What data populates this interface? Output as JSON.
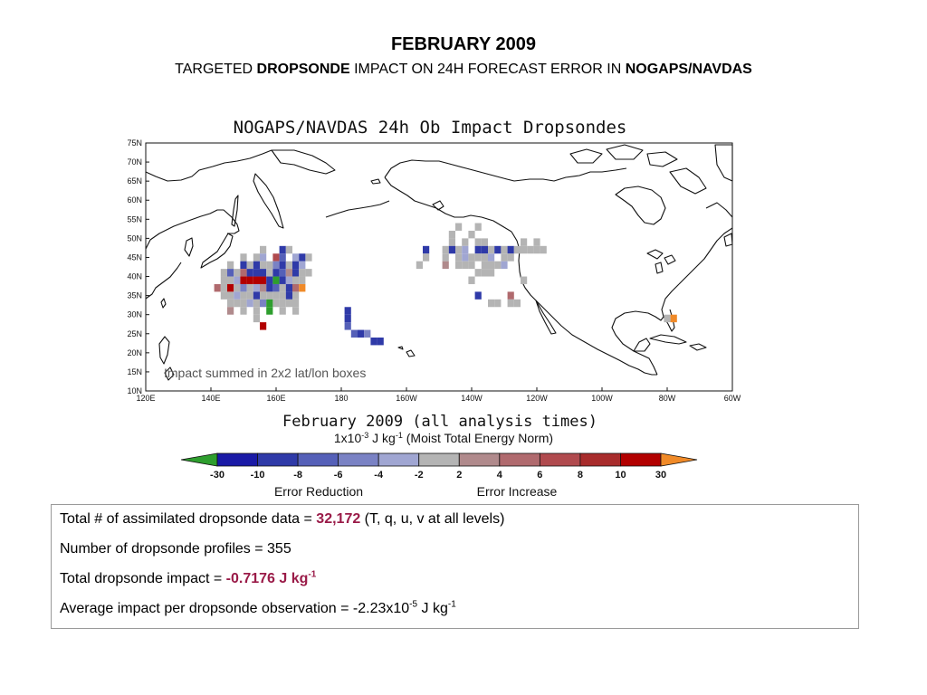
{
  "header": {
    "title": "FEBRUARY 2009",
    "subtitle_parts": [
      "TARGETED ",
      "DROPSONDE",
      " IMPACT ON 24H FORECAST ERROR IN ",
      "NOGAPS/NAVDAS"
    ]
  },
  "chart_data": {
    "type": "heatmap",
    "title": "NOGAPS/NAVDAS 24h Ob Impact Dropsondes",
    "subtitle": "February 2009 (all analysis times)",
    "annotation": "Impact summed in 2x2 lat/lon boxes",
    "units_parts": [
      "1x10",
      "-3",
      " J kg",
      "-1",
      "  (Moist Total Energy Norm)"
    ],
    "xlim": [
      120,
      300
    ],
    "ylim": [
      10,
      75
    ],
    "x_ticks": [
      120,
      140,
      160,
      180,
      200,
      220,
      240,
      260,
      280,
      300
    ],
    "x_tick_labels": [
      "120E",
      "140E",
      "160E",
      "180",
      "160W",
      "140W",
      "120W",
      "100W",
      "80W",
      "60W"
    ],
    "y_ticks": [
      10,
      15,
      20,
      25,
      30,
      35,
      40,
      45,
      50,
      55,
      60,
      65,
      70,
      75
    ],
    "y_tick_labels": [
      "10N",
      "15N",
      "20N",
      "25N",
      "30N",
      "35N",
      "40N",
      "45N",
      "50N",
      "55N",
      "60N",
      "65N",
      "70N",
      "75N"
    ],
    "colorbar": {
      "bounds": [
        "-30",
        "-10",
        "-8",
        "-6",
        "-4",
        "-2",
        "2",
        "4",
        "6",
        "8",
        "10",
        "30"
      ],
      "colors": [
        "#2e9e2e",
        "#1a1aa6",
        "#2f3aa8",
        "#5560b8",
        "#7a82c4",
        "#a0a6d2",
        "#b4b4b4",
        "#b08a8c",
        "#b06a6e",
        "#b04a4e",
        "#a82c2c",
        "#b20000",
        "#f08a28"
      ],
      "left_label": "Error Reduction",
      "right_label": "Error Increase"
    },
    "cells": [
      {
        "lon": 182,
        "lat": 31,
        "v": -10
      },
      {
        "lon": 182,
        "lat": 29,
        "v": -10
      },
      {
        "lon": 182,
        "lat": 27,
        "v": -8
      },
      {
        "lon": 184,
        "lat": 25,
        "v": -8
      },
      {
        "lon": 186,
        "lat": 25,
        "v": -10
      },
      {
        "lon": 188,
        "lat": 25,
        "v": -6
      },
      {
        "lon": 190,
        "lat": 23,
        "v": -10
      },
      {
        "lon": 192,
        "lat": 23,
        "v": -10
      },
      {
        "lon": 156,
        "lat": 47,
        "v": -1
      },
      {
        "lon": 162,
        "lat": 47,
        "v": -10
      },
      {
        "lon": 164,
        "lat": 47,
        "v": 1
      },
      {
        "lon": 150,
        "lat": 45,
        "v": -1
      },
      {
        "lon": 154,
        "lat": 45,
        "v": -1
      },
      {
        "lon": 156,
        "lat": 45,
        "v": -3
      },
      {
        "lon": 160,
        "lat": 45,
        "v": 7
      },
      {
        "lon": 162,
        "lat": 45,
        "v": -7
      },
      {
        "lon": 166,
        "lat": 45,
        "v": -4
      },
      {
        "lon": 168,
        "lat": 45,
        "v": -10
      },
      {
        "lon": 170,
        "lat": 45,
        "v": -1
      },
      {
        "lon": 146,
        "lat": 43,
        "v": -1
      },
      {
        "lon": 150,
        "lat": 43,
        "v": -9
      },
      {
        "lon": 152,
        "lat": 43,
        "v": 1
      },
      {
        "lon": 154,
        "lat": 43,
        "v": -10
      },
      {
        "lon": 156,
        "lat": 43,
        "v": 1
      },
      {
        "lon": 158,
        "lat": 43,
        "v": -1
      },
      {
        "lon": 160,
        "lat": 43,
        "v": -5
      },
      {
        "lon": 162,
        "lat": 43,
        "v": -9
      },
      {
        "lon": 164,
        "lat": 43,
        "v": 1
      },
      {
        "lon": 166,
        "lat": 43,
        "v": -10
      },
      {
        "lon": 168,
        "lat": 43,
        "v": -3
      },
      {
        "lon": 144,
        "lat": 41,
        "v": -1
      },
      {
        "lon": 146,
        "lat": 41,
        "v": -8
      },
      {
        "lon": 148,
        "lat": 41,
        "v": -1
      },
      {
        "lon": 150,
        "lat": 41,
        "v": 5
      },
      {
        "lon": 152,
        "lat": 41,
        "v": -10
      },
      {
        "lon": 154,
        "lat": 41,
        "v": -10
      },
      {
        "lon": 156,
        "lat": 41,
        "v": -10
      },
      {
        "lon": 158,
        "lat": 41,
        "v": -1
      },
      {
        "lon": 160,
        "lat": 41,
        "v": -10
      },
      {
        "lon": 162,
        "lat": 41,
        "v": -7
      },
      {
        "lon": 164,
        "lat": 41,
        "v": 3
      },
      {
        "lon": 166,
        "lat": 41,
        "v": -10
      },
      {
        "lon": 168,
        "lat": 41,
        "v": -1
      },
      {
        "lon": 170,
        "lat": 41,
        "v": -1
      },
      {
        "lon": 144,
        "lat": 39,
        "v": 1
      },
      {
        "lon": 146,
        "lat": 39,
        "v": -1
      },
      {
        "lon": 148,
        "lat": 39,
        "v": -3
      },
      {
        "lon": 150,
        "lat": 39,
        "v": 11
      },
      {
        "lon": 152,
        "lat": 39,
        "v": 11
      },
      {
        "lon": 154,
        "lat": 39,
        "v": 11
      },
      {
        "lon": 156,
        "lat": 39,
        "v": 11
      },
      {
        "lon": 158,
        "lat": 39,
        "v": -10
      },
      {
        "lon": 160,
        "lat": 39,
        "v": -31
      },
      {
        "lon": 162,
        "lat": 39,
        "v": -10
      },
      {
        "lon": 164,
        "lat": 39,
        "v": -3
      },
      {
        "lon": 166,
        "lat": 39,
        "v": -1
      },
      {
        "lon": 168,
        "lat": 39,
        "v": 1
      },
      {
        "lon": 142,
        "lat": 37,
        "v": 5
      },
      {
        "lon": 144,
        "lat": 37,
        "v": -1
      },
      {
        "lon": 146,
        "lat": 37,
        "v": 11
      },
      {
        "lon": 148,
        "lat": 37,
        "v": -1
      },
      {
        "lon": 150,
        "lat": 37,
        "v": -5
      },
      {
        "lon": 152,
        "lat": 37,
        "v": 1
      },
      {
        "lon": 154,
        "lat": 37,
        "v": -3
      },
      {
        "lon": 156,
        "lat": 37,
        "v": 3
      },
      {
        "lon": 158,
        "lat": 37,
        "v": -10
      },
      {
        "lon": 160,
        "lat": 37,
        "v": -8
      },
      {
        "lon": 162,
        "lat": 37,
        "v": -1
      },
      {
        "lon": 164,
        "lat": 37,
        "v": -10
      },
      {
        "lon": 166,
        "lat": 37,
        "v": 5
      },
      {
        "lon": 168,
        "lat": 37,
        "v": 31
      },
      {
        "lon": 144,
        "lat": 35,
        "v": 1
      },
      {
        "lon": 146,
        "lat": 35,
        "v": -1
      },
      {
        "lon": 148,
        "lat": 35,
        "v": -3
      },
      {
        "lon": 150,
        "lat": 35,
        "v": -1
      },
      {
        "lon": 152,
        "lat": 35,
        "v": -1
      },
      {
        "lon": 154,
        "lat": 35,
        "v": -10
      },
      {
        "lon": 156,
        "lat": 35,
        "v": -1
      },
      {
        "lon": 158,
        "lat": 35,
        "v": 1
      },
      {
        "lon": 160,
        "lat": 35,
        "v": -1
      },
      {
        "lon": 162,
        "lat": 35,
        "v": 1
      },
      {
        "lon": 164,
        "lat": 35,
        "v": -10
      },
      {
        "lon": 166,
        "lat": 35,
        "v": -1
      },
      {
        "lon": 146,
        "lat": 33,
        "v": -1
      },
      {
        "lon": 148,
        "lat": 33,
        "v": 1
      },
      {
        "lon": 150,
        "lat": 33,
        "v": -1
      },
      {
        "lon": 152,
        "lat": 33,
        "v": -3
      },
      {
        "lon": 154,
        "lat": 33,
        "v": -1
      },
      {
        "lon": 156,
        "lat": 33,
        "v": -5
      },
      {
        "lon": 158,
        "lat": 33,
        "v": -31
      },
      {
        "lon": 160,
        "lat": 33,
        "v": -1
      },
      {
        "lon": 162,
        "lat": 33,
        "v": 1
      },
      {
        "lon": 164,
        "lat": 33,
        "v": -1
      },
      {
        "lon": 166,
        "lat": 33,
        "v": -1
      },
      {
        "lon": 146,
        "lat": 31,
        "v": 3
      },
      {
        "lon": 150,
        "lat": 31,
        "v": -1
      },
      {
        "lon": 154,
        "lat": 31,
        "v": -1
      },
      {
        "lon": 158,
        "lat": 31,
        "v": -31
      },
      {
        "lon": 162,
        "lat": 31,
        "v": -1
      },
      {
        "lon": 166,
        "lat": 31,
        "v": -1
      },
      {
        "lon": 154,
        "lat": 29,
        "v": 1
      },
      {
        "lon": 156,
        "lat": 27,
        "v": 11
      },
      {
        "lon": 216,
        "lat": 53,
        "v": -1
      },
      {
        "lon": 222,
        "lat": 53,
        "v": -1
      },
      {
        "lon": 214,
        "lat": 51,
        "v": -1
      },
      {
        "lon": 220,
        "lat": 51,
        "v": -1
      },
      {
        "lon": 214,
        "lat": 49,
        "v": 1
      },
      {
        "lon": 218,
        "lat": 49,
        "v": -1
      },
      {
        "lon": 222,
        "lat": 49,
        "v": -1
      },
      {
        "lon": 224,
        "lat": 49,
        "v": -1
      },
      {
        "lon": 236,
        "lat": 49,
        "v": -1
      },
      {
        "lon": 240,
        "lat": 49,
        "v": -1
      },
      {
        "lon": 206,
        "lat": 47,
        "v": -10
      },
      {
        "lon": 212,
        "lat": 47,
        "v": -1
      },
      {
        "lon": 214,
        "lat": 47,
        "v": -10
      },
      {
        "lon": 216,
        "lat": 47,
        "v": 1
      },
      {
        "lon": 218,
        "lat": 47,
        "v": -3
      },
      {
        "lon": 222,
        "lat": 47,
        "v": -10
      },
      {
        "lon": 224,
        "lat": 47,
        "v": -10
      },
      {
        "lon": 226,
        "lat": 47,
        "v": -1
      },
      {
        "lon": 228,
        "lat": 47,
        "v": -10
      },
      {
        "lon": 230,
        "lat": 47,
        "v": -1
      },
      {
        "lon": 232,
        "lat": 47,
        "v": -9
      },
      {
        "lon": 234,
        "lat": 47,
        "v": -1
      },
      {
        "lon": 236,
        "lat": 47,
        "v": 1
      },
      {
        "lon": 238,
        "lat": 47,
        "v": -1
      },
      {
        "lon": 240,
        "lat": 47,
        "v": -1
      },
      {
        "lon": 242,
        "lat": 47,
        "v": -1
      },
      {
        "lon": 206,
        "lat": 45,
        "v": -1
      },
      {
        "lon": 212,
        "lat": 45,
        "v": -1
      },
      {
        "lon": 216,
        "lat": 45,
        "v": -1
      },
      {
        "lon": 218,
        "lat": 45,
        "v": -3
      },
      {
        "lon": 220,
        "lat": 45,
        "v": -1
      },
      {
        "lon": 222,
        "lat": 45,
        "v": -1
      },
      {
        "lon": 224,
        "lat": 45,
        "v": 1
      },
      {
        "lon": 226,
        "lat": 45,
        "v": -3
      },
      {
        "lon": 230,
        "lat": 45,
        "v": -1
      },
      {
        "lon": 232,
        "lat": 45,
        "v": 1
      },
      {
        "lon": 204,
        "lat": 43,
        "v": -1
      },
      {
        "lon": 212,
        "lat": 43,
        "v": 3
      },
      {
        "lon": 216,
        "lat": 43,
        "v": -1
      },
      {
        "lon": 218,
        "lat": 43,
        "v": 1
      },
      {
        "lon": 220,
        "lat": 43,
        "v": -1
      },
      {
        "lon": 224,
        "lat": 43,
        "v": -1
      },
      {
        "lon": 226,
        "lat": 43,
        "v": 1
      },
      {
        "lon": 228,
        "lat": 43,
        "v": -1
      },
      {
        "lon": 230,
        "lat": 43,
        "v": -3
      },
      {
        "lon": 222,
        "lat": 41,
        "v": -1
      },
      {
        "lon": 224,
        "lat": 41,
        "v": 1
      },
      {
        "lon": 226,
        "lat": 41,
        "v": -1
      },
      {
        "lon": 220,
        "lat": 39,
        "v": 1
      },
      {
        "lon": 236,
        "lat": 39,
        "v": -1
      },
      {
        "lon": 222,
        "lat": 35,
        "v": -10
      },
      {
        "lon": 232,
        "lat": 35,
        "v": 5
      },
      {
        "lon": 226,
        "lat": 33,
        "v": -1
      },
      {
        "lon": 228,
        "lat": 33,
        "v": 1
      },
      {
        "lon": 232,
        "lat": 33,
        "v": -1
      },
      {
        "lon": 234,
        "lat": 33,
        "v": -1
      },
      {
        "lon": 280,
        "lat": 29,
        "v": -1
      },
      {
        "lon": 282,
        "lat": 29,
        "v": 31
      }
    ]
  },
  "stats": {
    "line1_pre": "Total # of assimilated dropsonde data = ",
    "line1_val": "32,172",
    "line1_post": " (T, q, u, v at all levels)",
    "line2": "Number of dropsonde profiles =  355",
    "line3_pre": "Total dropsonde impact = ",
    "line3_val": "-0.7176 J kg",
    "line3_sup": "-1",
    "line4_pre": "Average impact per dropsonde observation = -2.23x10",
    "line4_sup1": "-5",
    "line4_mid": " J kg",
    "line4_sup2": "-1"
  }
}
